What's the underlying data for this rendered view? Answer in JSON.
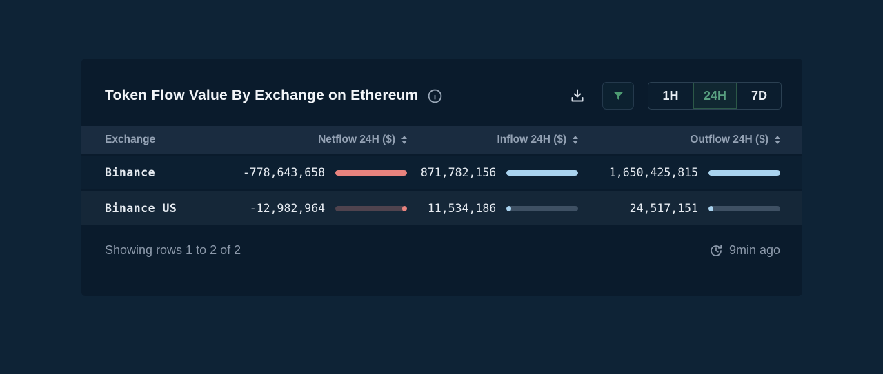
{
  "header": {
    "title": "Token Flow Value By Exchange on Ethereum",
    "time_ranges": [
      {
        "label": "1H",
        "active": false
      },
      {
        "label": "24H",
        "active": true
      },
      {
        "label": "7D",
        "active": false
      }
    ]
  },
  "table": {
    "columns": {
      "exchange": "Exchange",
      "netflow": "Netflow 24H ($)",
      "inflow": "Inflow 24H ($)",
      "outflow": "Outflow 24H ($)"
    },
    "rows": [
      {
        "exchange": "Binance",
        "netflow": "-778,643,658",
        "netflow_pct": 100,
        "inflow": "871,782,156",
        "inflow_pct": 100,
        "outflow": "1,650,425,815",
        "outflow_pct": 100
      },
      {
        "exchange": "Binance US",
        "netflow": "-12,982,964",
        "netflow_pct": 1.7,
        "inflow": "11,534,186",
        "inflow_pct": 1.3,
        "outflow": "24,517,151",
        "outflow_pct": 1.5
      }
    ]
  },
  "footer": {
    "status": "Showing rows 1 to 2 of 2",
    "updated": "9min ago"
  },
  "colors": {
    "negative_bar": "#e8837e",
    "positive_bar": "#a9d3ef",
    "accent_green": "#59a181",
    "panel_bg": "#0a1b2c",
    "header_band_bg": "#1a2c40"
  }
}
